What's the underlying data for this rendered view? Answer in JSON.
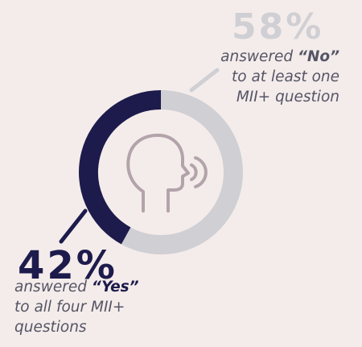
{
  "chart_data": {
    "type": "pie",
    "style": "donut",
    "slices": [
      {
        "label": "No",
        "value": 58,
        "color": "#cfcfd4"
      },
      {
        "label": "Yes",
        "value": 42,
        "color": "#1d1b4c"
      }
    ],
    "center_icon": "head-speaking-icon"
  },
  "no_callout": {
    "percent": "58%",
    "line1_prefix": "answered ",
    "answer": "“No”",
    "line2": "to at least one",
    "line3": "MII+ question"
  },
  "yes_callout": {
    "percent": "42%",
    "line1_prefix": "answered ",
    "answer": "“Yes”",
    "line2": "to all four MII+",
    "line3": "questions"
  },
  "colors": {
    "background": "#f4ecea",
    "yes": "#1d1b4c",
    "no": "#cfcfd4",
    "icon": "#b3a3aa",
    "text": "#555566"
  }
}
